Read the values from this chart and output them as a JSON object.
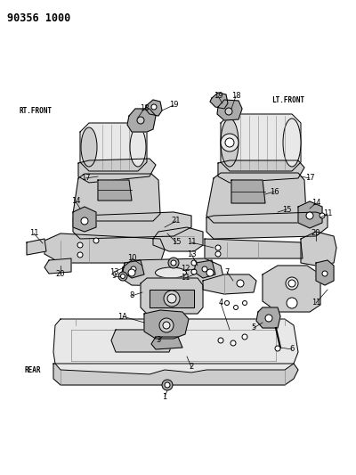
{
  "title": "90356 1000",
  "bg": "#ffffff",
  "fg": "#000000",
  "figsize": [
    4.0,
    5.33
  ],
  "dpi": 100,
  "label_rt_front": "RT.FRONT",
  "label_lt_front": "LT.FRONT",
  "label_rear": "REAR"
}
